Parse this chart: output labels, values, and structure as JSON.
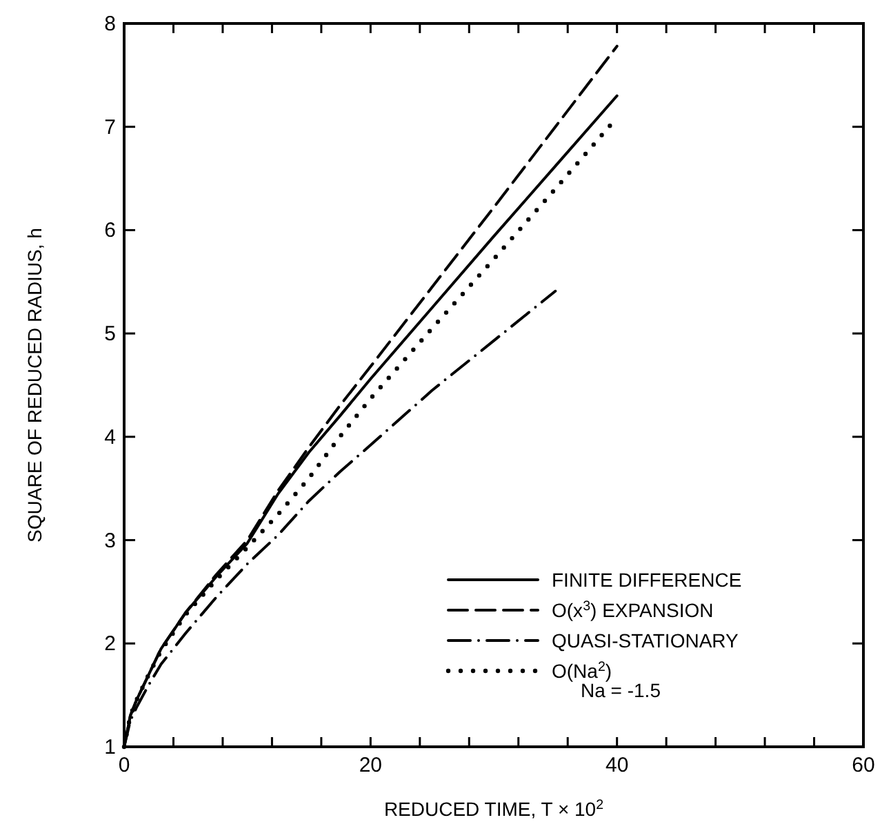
{
  "chart_data": {
    "type": "line",
    "xlabel": "REDUCED TIME, T × 10$^{2}$",
    "ylabel": "SQUARE OF REDUCED RADIUS, h",
    "x": [
      0,
      0.5,
      1,
      2,
      3,
      5,
      7.5,
      10,
      12.5,
      15,
      17.5,
      20,
      25,
      30,
      35,
      40
    ],
    "xlim": [
      0,
      60
    ],
    "xticks": [
      0,
      {
        "value": 4,
        "label": null
      },
      {
        "value": 8,
        "label": null
      },
      {
        "value": 12,
        "label": null
      },
      {
        "value": 16,
        "label": null
      },
      20,
      {
        "value": 24,
        "label": null
      },
      {
        "value": 28,
        "label": null
      },
      {
        "value": 32,
        "label": null
      },
      {
        "value": 36,
        "label": null
      },
      40,
      {
        "value": 44,
        "label": null
      },
      {
        "value": 48,
        "label": null
      },
      {
        "value": 52,
        "label": null
      },
      {
        "value": 56,
        "label": null
      },
      60
    ],
    "ylim": [
      1,
      8
    ],
    "yticks": [
      1,
      2,
      3,
      4,
      5,
      6,
      7,
      8
    ],
    "series": [
      {
        "name": "FINITE DIFFERENCE",
        "color": "#000000",
        "line_style": "solid",
        "values": [
          1,
          1.3,
          1.45,
          1.7,
          1.95,
          2.3,
          2.65,
          2.97,
          3.45,
          3.85,
          4.2,
          4.56,
          5.25,
          5.94,
          6.62,
          7.3
        ]
      },
      {
        "name": "O(x$^{3}$) EXPANSION",
        "color": "#000000",
        "line_style": "dashed",
        "values": [
          1,
          1.3,
          1.45,
          1.7,
          1.95,
          2.3,
          2.67,
          3.0,
          3.48,
          3.9,
          4.3,
          4.68,
          5.45,
          6.22,
          7.0,
          7.78
        ]
      },
      {
        "name": "QUASI-STATIONARY",
        "color": "#000000",
        "line_style": "dashdot",
        "values": [
          1,
          1.25,
          1.38,
          1.6,
          1.8,
          2.1,
          2.45,
          2.77,
          3.05,
          3.38,
          3.66,
          3.92,
          4.45,
          4.93,
          5.41,
          null
        ]
      },
      {
        "name": "O(Na$^{2}$)",
        "color": "#000000",
        "line_style": "dotted",
        "values": [
          1,
          1.3,
          1.45,
          1.7,
          1.93,
          2.28,
          2.62,
          2.93,
          3.25,
          3.6,
          4.0,
          4.37,
          5.05,
          5.72,
          6.4,
          7.09
        ]
      }
    ],
    "legend": "right",
    "grid": false,
    "annotations": [
      "Na = -1.5"
    ]
  }
}
